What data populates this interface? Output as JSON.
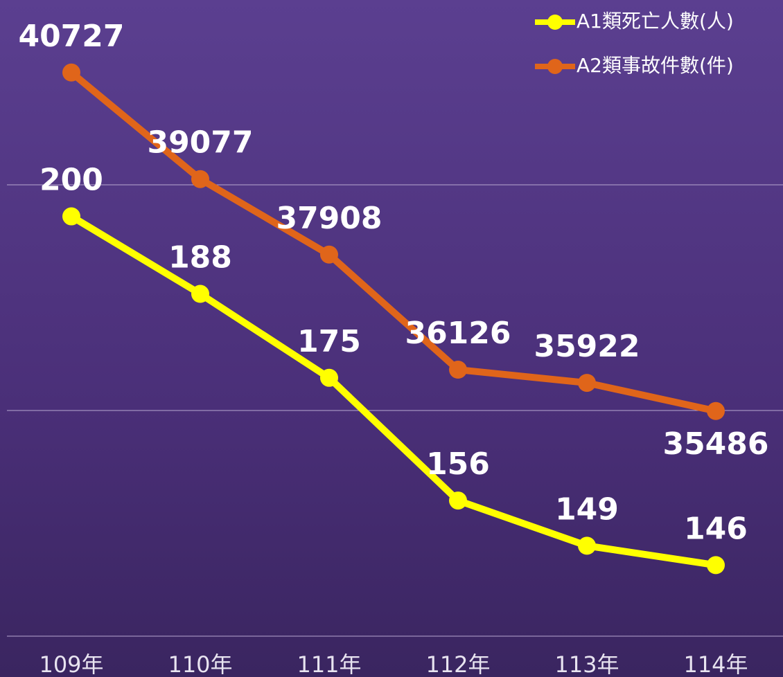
{
  "chart_data": {
    "type": "line",
    "categories": [
      "109年",
      "110年",
      "111年",
      "112年",
      "113年",
      "114年"
    ],
    "series": [
      {
        "name": "A1類死亡人數(人)",
        "color": "#ffff00",
        "values": [
          200,
          188,
          175,
          156,
          149,
          146
        ]
      },
      {
        "name": "A2類事故件數(件)",
        "color": "#e0651a",
        "values": [
          40727,
          39077,
          37908,
          36126,
          35922,
          35486
        ],
        "axis": "y2"
      }
    ],
    "ylim": [
      135,
      232
    ],
    "y2lim": [
      32000,
      41700
    ]
  }
}
